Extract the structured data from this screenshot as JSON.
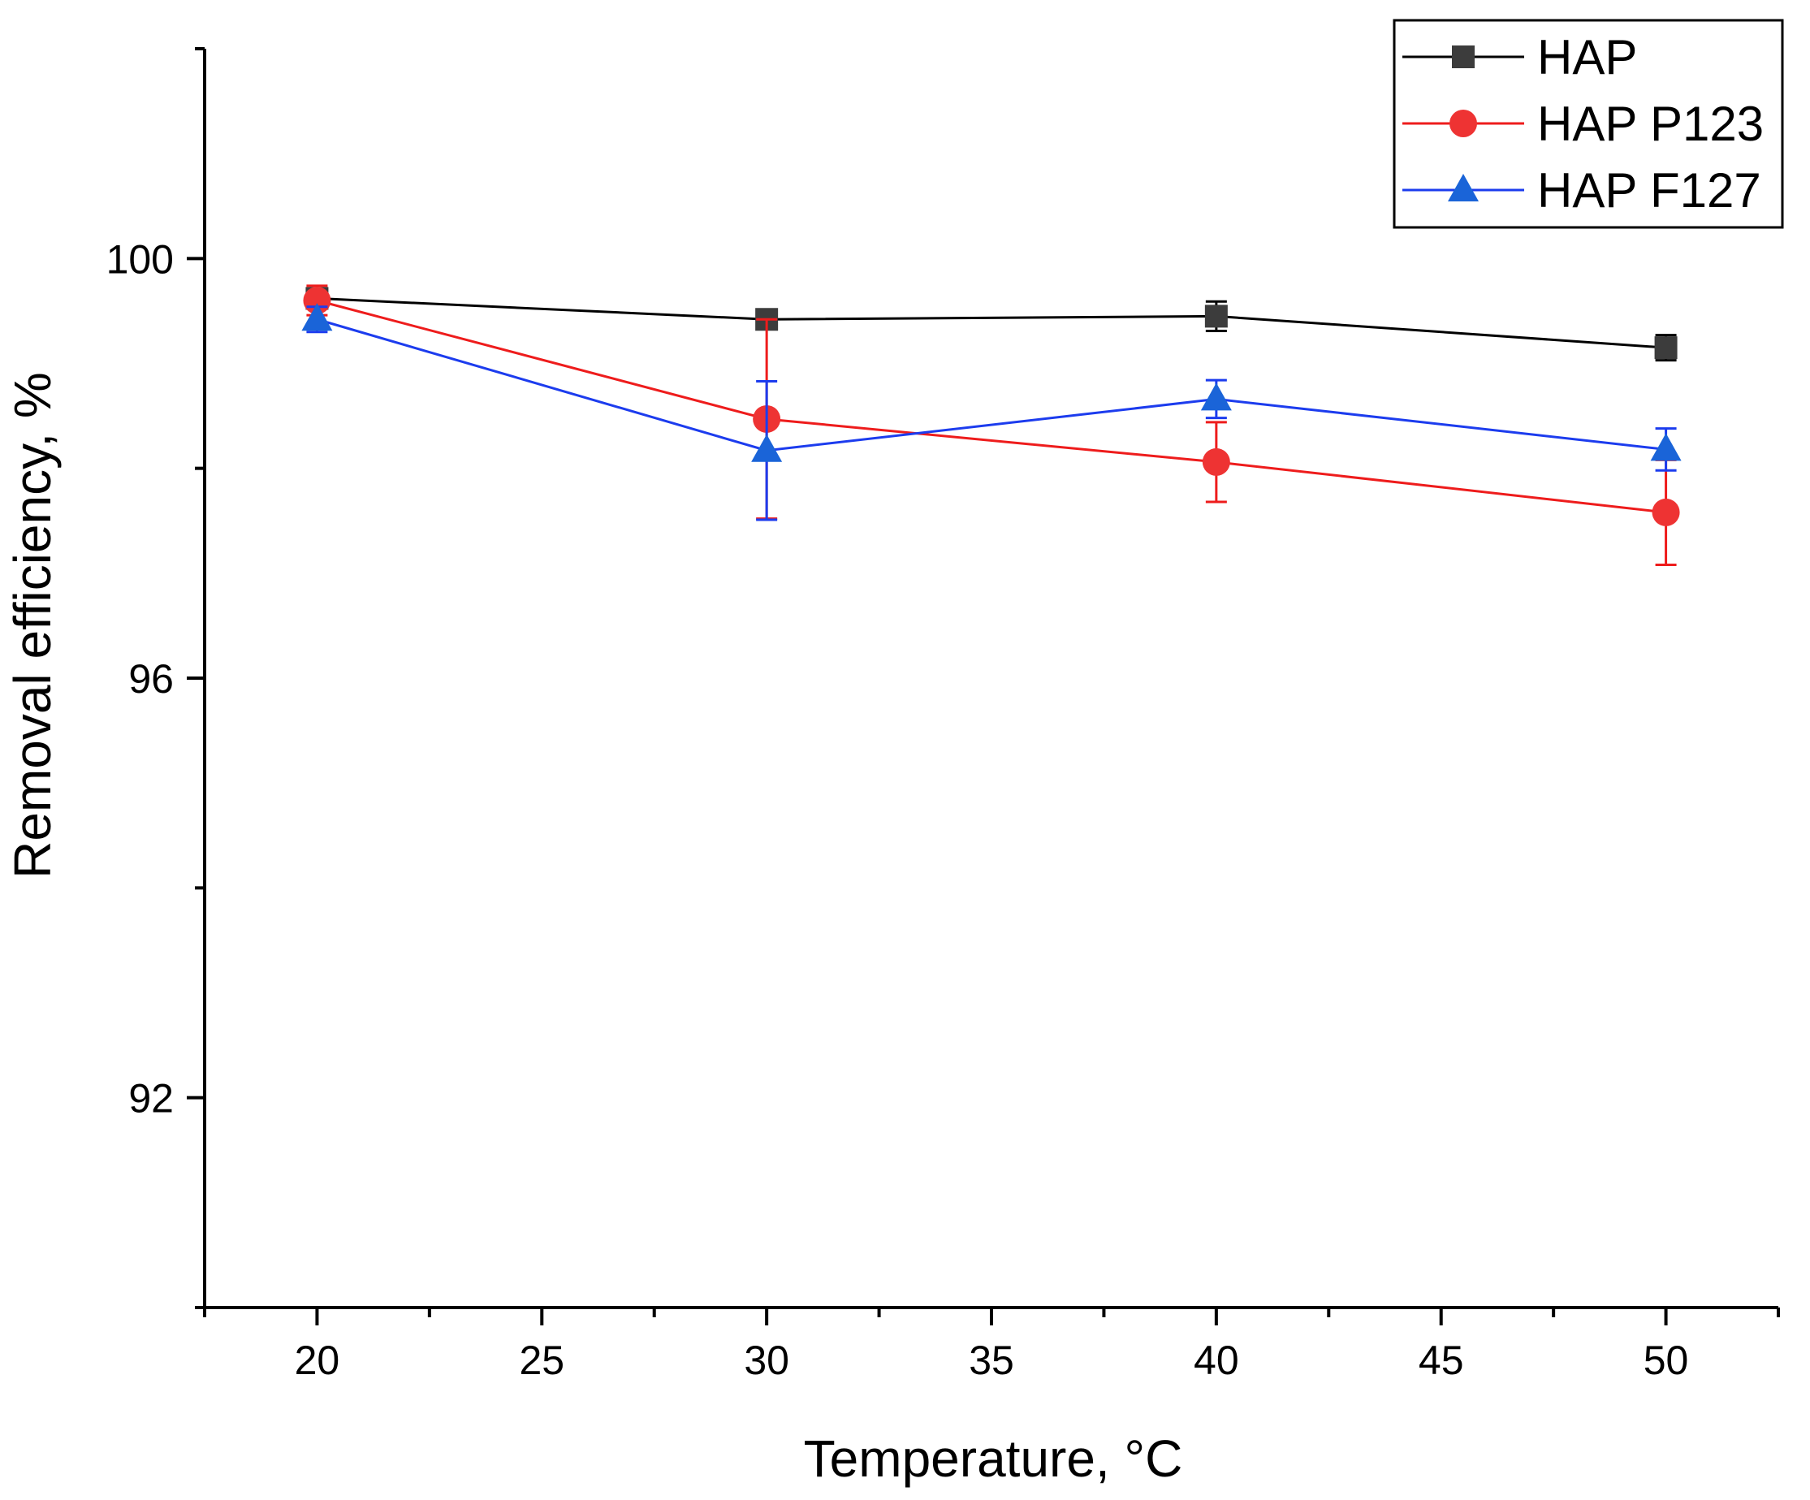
{
  "chart_data": {
    "type": "line",
    "title": "",
    "xlabel": "Temperature, °C",
    "ylabel": "Removal efficiency, %",
    "xlim": [
      17.5,
      52.5
    ],
    "ylim": [
      90,
      102
    ],
    "x_ticks": [
      20,
      25,
      30,
      35,
      40,
      45,
      50
    ],
    "x_minor_ticks": [
      17.5,
      22.5,
      27.5,
      32.5,
      37.5,
      42.5,
      47.5,
      52.5
    ],
    "y_ticks": [
      92,
      96,
      100
    ],
    "y_minor_ticks": [
      90,
      94,
      98,
      102
    ],
    "grid": false,
    "legend_position": "top-right",
    "x": [
      20,
      30,
      40,
      50
    ],
    "series": [
      {
        "name": "HAP",
        "color": "#000000",
        "marker_color": "#3c3c3c",
        "marker": "square",
        "values": [
          99.62,
          99.42,
          99.45,
          99.15
        ],
        "errors": [
          0.08,
          0.08,
          0.14,
          0.12
        ]
      },
      {
        "name": "HAP P123",
        "color": "#ee1c1c",
        "marker_color": "#ee3333",
        "marker": "circle",
        "values": [
          99.6,
          98.47,
          98.06,
          97.58
        ],
        "errors": [
          0.14,
          0.95,
          0.38,
          0.5
        ]
      },
      {
        "name": "HAP F127",
        "color": "#1c3cee",
        "marker_color": "#1a64d8",
        "marker": "triangle",
        "values": [
          99.42,
          98.17,
          98.66,
          98.18
        ],
        "errors": [
          0.12,
          0.66,
          0.18,
          0.2
        ]
      }
    ]
  }
}
